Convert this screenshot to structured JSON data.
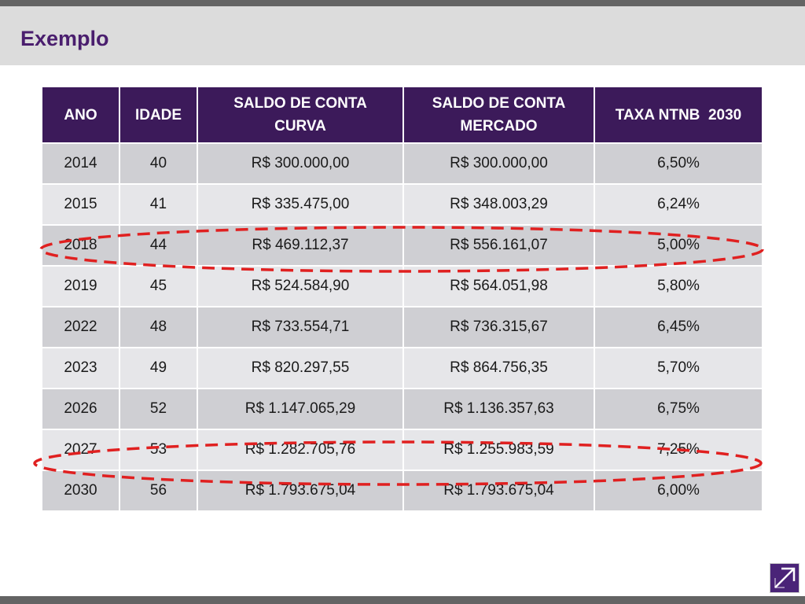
{
  "title": "Exemplo",
  "table": {
    "headers": [
      [
        "ANO"
      ],
      [
        "IDADE"
      ],
      [
        "SALDO DE CONTA",
        "CURVA"
      ],
      [
        "SALDO DE CONTA",
        "MERCADO"
      ],
      [
        "TAXA NTNB  2030"
      ]
    ],
    "rows": [
      [
        "2014",
        "40",
        "R$ 300.000,00",
        "R$ 300.000,00",
        "6,50%"
      ],
      [
        "2015",
        "41",
        "R$ 335.475,00",
        "R$ 348.003,29",
        "6,24%"
      ],
      [
        "2018",
        "44",
        "R$ 469.112,37",
        "R$ 556.161,07",
        "5,00%"
      ],
      [
        "2019",
        "45",
        "R$ 524.584,90",
        "R$ 564.051,98",
        "5,80%"
      ],
      [
        "2022",
        "48",
        "R$ 733.554,71",
        "R$ 736.315,67",
        "6,45%"
      ],
      [
        "2023",
        "49",
        "R$ 820.297,55",
        "R$ 864.756,35",
        "5,70%"
      ],
      [
        "2026",
        "52",
        "R$ 1.147.065,29",
        "R$ 1.136.357,63",
        "6,75%"
      ],
      [
        "2027",
        "53",
        "R$ 1.282.705,76",
        "R$ 1.255.983,59",
        "7,25%"
      ],
      [
        "2030",
        "56",
        "R$ 1.793.675,04",
        "R$ 1.793.675,04",
        "6,00%"
      ]
    ],
    "highlighted_rows": [
      "2018",
      "2027"
    ]
  },
  "colors": {
    "header_bg": "#3c1a5a",
    "title": "#4a1e6e",
    "row_dark": "#cfcfd3",
    "row_light": "#e6e6e9",
    "highlight_ellipse": "#e02020"
  },
  "logo_icon": "arrow-logo-icon"
}
